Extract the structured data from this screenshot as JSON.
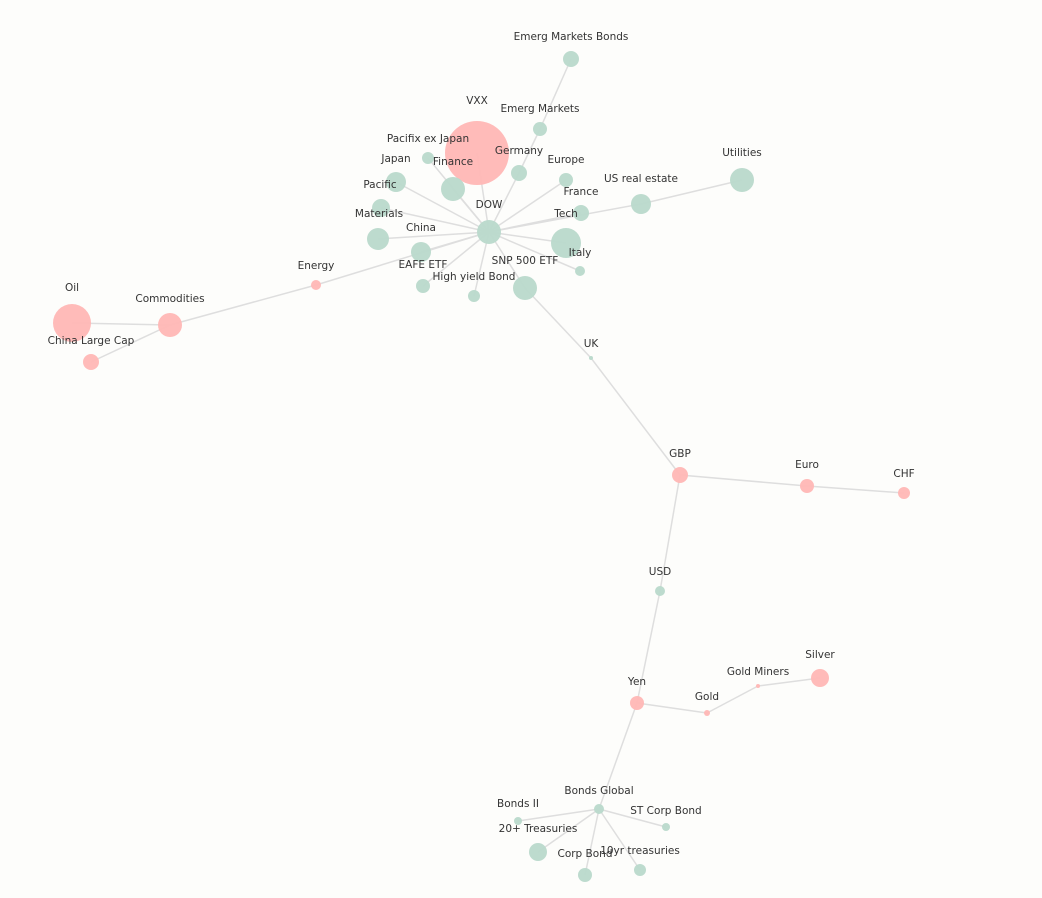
{
  "nodes": [
    {
      "label": "DOW"
    },
    {
      "label": "VXX"
    },
    {
      "label": "Finance"
    },
    {
      "label": "Pacifix ex Japan"
    },
    {
      "label": "Japan"
    },
    {
      "label": "Pacific"
    },
    {
      "label": "Materials"
    },
    {
      "label": "China"
    },
    {
      "label": "EAFE ETF"
    },
    {
      "label": "High yield Bond"
    },
    {
      "label": "SNP 500 ETF"
    },
    {
      "label": "Italy"
    },
    {
      "label": "Tech"
    },
    {
      "label": "France"
    },
    {
      "label": "US real estate"
    },
    {
      "label": "Europe"
    },
    {
      "label": "Germany"
    },
    {
      "label": "Emerg Markets"
    },
    {
      "label": "Emerg Markets Bonds"
    },
    {
      "label": "Utilities"
    },
    {
      "label": "Energy"
    },
    {
      "label": "Commodities"
    },
    {
      "label": "Oil"
    },
    {
      "label": "China Large Cap"
    },
    {
      "label": "UK"
    },
    {
      "label": "GBP"
    },
    {
      "label": "Euro"
    },
    {
      "label": "CHF"
    },
    {
      "label": "USD"
    },
    {
      "label": "Yen"
    },
    {
      "label": "Gold"
    },
    {
      "label": "Gold Miners"
    },
    {
      "label": "Silver"
    },
    {
      "label": "Bonds Global"
    },
    {
      "label": "Bonds II"
    },
    {
      "label": "20+ Treasuries"
    },
    {
      "label": "Corp Bond"
    },
    {
      "label": "10yr treasuries"
    },
    {
      "label": "ST Corp Bond"
    }
  ]
}
